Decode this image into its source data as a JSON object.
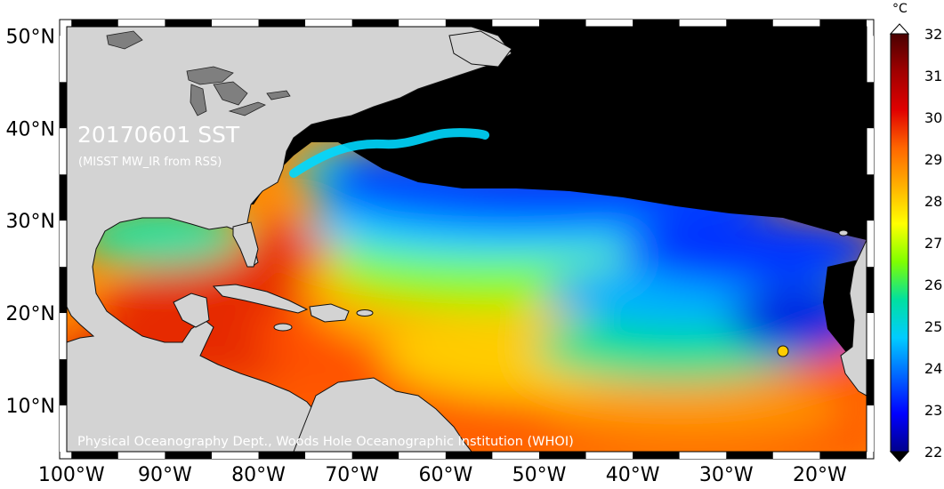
{
  "map": {
    "title": "20170601 SST",
    "subtitle": "(MISST MW_IR from RSS)",
    "credit": "Physical Oceanography Dept., Woods Hole Oceanographic Institution (WHOI)",
    "lat_labels": [
      "50°N",
      "40°N",
      "30°N",
      "20°N",
      "10°N"
    ],
    "lon_labels": [
      "100°W",
      "90°W",
      "80°W",
      "70°W",
      "60°W",
      "50°W",
      "40°W",
      "30°W",
      "20°W"
    ],
    "extent": {
      "lon_min": -100.5,
      "lon_max": -15,
      "lat_min": 5,
      "lat_max": 51
    },
    "colors": {
      "land": "#d3d3d3",
      "lake": "#7f7f7f",
      "no_data": "#000000"
    }
  },
  "colorbar": {
    "unit": "°C",
    "min": 22,
    "max": 32,
    "ticks": [
      "32",
      "31",
      "30",
      "29",
      "28",
      "27",
      "26",
      "25",
      "24",
      "23",
      "22"
    ],
    "stops": [
      "#00008b",
      "#0000ff",
      "#0066ff",
      "#00ccff",
      "#00e0a0",
      "#7fff00",
      "#ffff00",
      "#ffb000",
      "#ff6600",
      "#e00000",
      "#a00000",
      "#4a0000"
    ]
  }
}
